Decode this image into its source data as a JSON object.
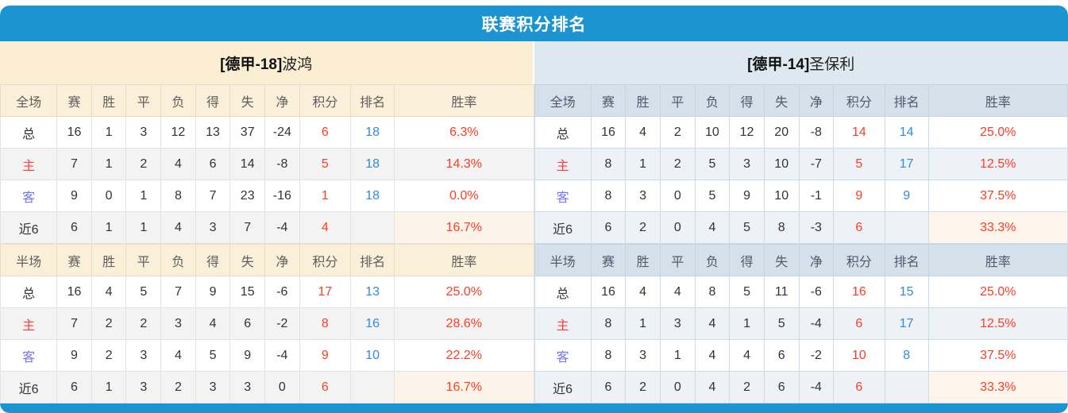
{
  "title": "联赛积分排名",
  "columns_full": [
    "全场",
    "赛",
    "胜",
    "平",
    "负",
    "得",
    "失",
    "净",
    "积分",
    "排名",
    "胜率"
  ],
  "columns_half": [
    "半场",
    "赛",
    "胜",
    "平",
    "负",
    "得",
    "失",
    "净",
    "积分",
    "排名",
    "胜率"
  ],
  "colors": {
    "accent_blue": "#1d94d2",
    "left_header_bg": "#fbeed3",
    "right_header_bg": "#dde8f0",
    "points_red": "#ff3c26",
    "rank_blue": "#338add",
    "home_label_red": "#ff3b3b",
    "away_label_blue": "#7575ee"
  },
  "teams": [
    {
      "tag": "[德甲-18]",
      "name": "波鸿",
      "full": [
        {
          "type": "total",
          "cells": [
            "总",
            "16",
            "1",
            "3",
            "12",
            "13",
            "37",
            "-24",
            "6",
            "18",
            "6.3%"
          ]
        },
        {
          "type": "home",
          "cells": [
            "主",
            "7",
            "1",
            "2",
            "4",
            "6",
            "14",
            "-8",
            "5",
            "18",
            "14.3%"
          ]
        },
        {
          "type": "away",
          "cells": [
            "客",
            "9",
            "0",
            "1",
            "8",
            "7",
            "23",
            "-16",
            "1",
            "18",
            "0.0%"
          ]
        },
        {
          "type": "recent",
          "cells": [
            "近6",
            "6",
            "1",
            "1",
            "4",
            "3",
            "7",
            "-4",
            "4",
            "",
            "16.7%"
          ]
        }
      ],
      "half": [
        {
          "type": "total",
          "cells": [
            "总",
            "16",
            "4",
            "5",
            "7",
            "9",
            "15",
            "-6",
            "17",
            "13",
            "25.0%"
          ]
        },
        {
          "type": "home",
          "cells": [
            "主",
            "7",
            "2",
            "2",
            "3",
            "4",
            "6",
            "-2",
            "8",
            "16",
            "28.6%"
          ]
        },
        {
          "type": "away",
          "cells": [
            "客",
            "9",
            "2",
            "3",
            "4",
            "5",
            "9",
            "-4",
            "9",
            "10",
            "22.2%"
          ]
        },
        {
          "type": "recent",
          "cells": [
            "近6",
            "6",
            "1",
            "3",
            "2",
            "3",
            "3",
            "0",
            "6",
            "",
            "16.7%"
          ]
        }
      ]
    },
    {
      "tag": "[德甲-14]",
      "name": "圣保利",
      "full": [
        {
          "type": "total",
          "cells": [
            "总",
            "16",
            "4",
            "2",
            "10",
            "12",
            "20",
            "-8",
            "14",
            "14",
            "25.0%"
          ]
        },
        {
          "type": "home",
          "cells": [
            "主",
            "8",
            "1",
            "2",
            "5",
            "3",
            "10",
            "-7",
            "5",
            "17",
            "12.5%"
          ]
        },
        {
          "type": "away",
          "cells": [
            "客",
            "8",
            "3",
            "0",
            "5",
            "9",
            "10",
            "-1",
            "9",
            "9",
            "37.5%"
          ]
        },
        {
          "type": "recent",
          "cells": [
            "近6",
            "6",
            "2",
            "0",
            "4",
            "5",
            "8",
            "-3",
            "6",
            "",
            "33.3%"
          ]
        }
      ],
      "half": [
        {
          "type": "total",
          "cells": [
            "总",
            "16",
            "4",
            "4",
            "8",
            "5",
            "11",
            "-6",
            "16",
            "15",
            "25.0%"
          ]
        },
        {
          "type": "home",
          "cells": [
            "主",
            "8",
            "1",
            "3",
            "4",
            "1",
            "5",
            "-4",
            "6",
            "17",
            "12.5%"
          ]
        },
        {
          "type": "away",
          "cells": [
            "客",
            "8",
            "3",
            "1",
            "4",
            "4",
            "6",
            "-2",
            "10",
            "8",
            "37.5%"
          ]
        },
        {
          "type": "recent",
          "cells": [
            "近6",
            "6",
            "2",
            "0",
            "4",
            "2",
            "6",
            "-4",
            "6",
            "",
            "33.3%"
          ]
        }
      ]
    }
  ]
}
